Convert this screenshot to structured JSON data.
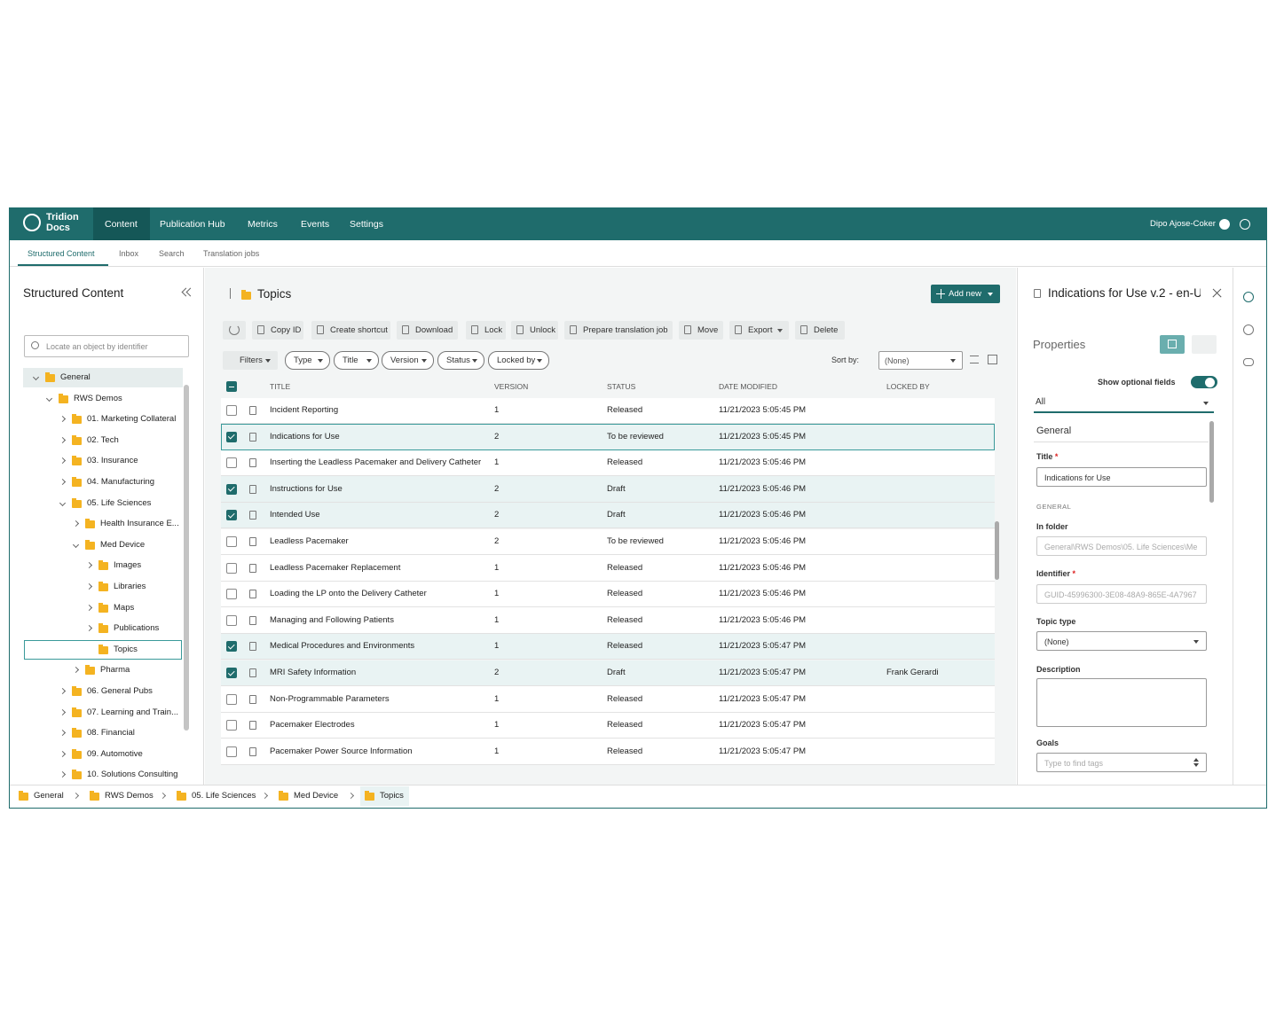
{
  "nav": {
    "brand": "Tridion Docs",
    "tabs": [
      {
        "label": "Content",
        "active": true
      },
      {
        "label": "Publication Hub"
      },
      {
        "label": "Metrics"
      },
      {
        "label": "Events"
      },
      {
        "label": "Settings"
      }
    ],
    "user": "Dipo Ajose-Coker"
  },
  "subnav": [
    {
      "label": "Structured Content",
      "active": true
    },
    {
      "label": "Inbox"
    },
    {
      "label": "Search"
    },
    {
      "label": "Translation jobs"
    }
  ],
  "sidebar": {
    "title": "Structured Content",
    "search_placeholder": "Locate an object by identifier",
    "tree": [
      {
        "label": "General",
        "level": 0,
        "expanded": true,
        "active": true
      },
      {
        "label": "RWS Demos",
        "level": 1,
        "expanded": true
      },
      {
        "label": "01. Marketing Collateral",
        "level": 2
      },
      {
        "label": "02. Tech",
        "level": 2
      },
      {
        "label": "03. Insurance",
        "level": 2
      },
      {
        "label": "04. Manufacturing",
        "level": 2
      },
      {
        "label": "05. Life Sciences",
        "level": 2,
        "expanded": true
      },
      {
        "label": "Health Insurance E...",
        "level": 3
      },
      {
        "label": "Med Device",
        "level": 3,
        "expanded": true
      },
      {
        "label": "Images",
        "level": 4
      },
      {
        "label": "Libraries",
        "level": 4
      },
      {
        "label": "Maps",
        "level": 4
      },
      {
        "label": "Publications",
        "level": 4
      },
      {
        "label": "Topics",
        "level": 4,
        "leaf": true,
        "selected": true
      },
      {
        "label": "Pharma",
        "level": 3
      },
      {
        "label": "06. General Pubs",
        "level": 2
      },
      {
        "label": "07. Learning and Train...",
        "level": 2
      },
      {
        "label": "08. Financial",
        "level": 2
      },
      {
        "label": "09. Automotive",
        "level": 2
      },
      {
        "label": "10. Solutions Consulting",
        "level": 2
      }
    ]
  },
  "main": {
    "title": "Topics",
    "add_new": "Add new",
    "toolbar": [
      {
        "label": "Copy ID"
      },
      {
        "label": "Create shortcut"
      },
      {
        "label": "Download"
      },
      {
        "label": "Lock"
      },
      {
        "label": "Unlock"
      },
      {
        "label": "Prepare translation job"
      },
      {
        "label": "Move"
      },
      {
        "label": "Export",
        "menu": true
      },
      {
        "label": "Delete"
      }
    ],
    "filters": [
      "Filters",
      "Type",
      "Title",
      "Version",
      "Status",
      "Locked by"
    ],
    "sort_label": "Sort by:",
    "sort_value": "(None)",
    "columns": [
      "TITLE",
      "VERSION",
      "STATUS",
      "DATE MODIFIED",
      "LOCKED BY"
    ],
    "rows": [
      {
        "title": "Incident Reporting",
        "version": 1,
        "status": "Released",
        "modified": "11/21/2023 5:05:45 PM"
      },
      {
        "title": "Indications for Use",
        "version": 2,
        "status": "To be reviewed",
        "modified": "11/21/2023 5:05:45 PM",
        "checked": true,
        "focused": true
      },
      {
        "title": "Inserting the Leadless Pacemaker and Delivery Catheter",
        "version": 1,
        "status": "Released",
        "modified": "11/21/2023 5:05:46 PM"
      },
      {
        "title": "Instructions for Use",
        "version": 2,
        "status": "Draft",
        "modified": "11/21/2023 5:05:46 PM",
        "checked": true
      },
      {
        "title": "Intended Use",
        "version": 2,
        "status": "Draft",
        "modified": "11/21/2023 5:05:46 PM",
        "checked": true
      },
      {
        "title": "Leadless Pacemaker",
        "version": 2,
        "status": "To be reviewed",
        "modified": "11/21/2023 5:05:46 PM"
      },
      {
        "title": "Leadless Pacemaker Replacement",
        "version": 1,
        "status": "Released",
        "modified": "11/21/2023 5:05:46 PM"
      },
      {
        "title": "Loading the LP onto the Delivery Catheter",
        "version": 1,
        "status": "Released",
        "modified": "11/21/2023 5:05:46 PM"
      },
      {
        "title": "Managing and Following Patients",
        "version": 1,
        "status": "Released",
        "modified": "11/21/2023 5:05:46 PM"
      },
      {
        "title": "Medical Procedures and Environments",
        "version": 1,
        "status": "Released",
        "modified": "11/21/2023 5:05:47 PM",
        "checked": true
      },
      {
        "title": "MRI Safety Information",
        "version": 2,
        "status": "Draft",
        "modified": "11/21/2023 5:05:47 PM",
        "locked_by": "Frank Gerardi",
        "checked": true
      },
      {
        "title": "Non-Programmable Parameters",
        "version": 1,
        "status": "Released",
        "modified": "11/21/2023 5:05:47 PM"
      },
      {
        "title": "Pacemaker Electrodes",
        "version": 1,
        "status": "Released",
        "modified": "11/21/2023 5:05:47 PM"
      },
      {
        "title": "Pacemaker Power Source Information",
        "version": 1,
        "status": "Released",
        "modified": "11/21/2023 5:05:47 PM"
      }
    ]
  },
  "details": {
    "title": "Indications for Use v.2 - en-U",
    "properties": "Properties",
    "optional_toggle": "Show optional fields",
    "filter": "All",
    "section": "General",
    "group": "GENERAL",
    "required_mark": "*",
    "fields": [
      {
        "label": "Title",
        "required": true,
        "kind": "input",
        "value": "Indications for Use"
      },
      {
        "label": "In folder",
        "kind": "disabled",
        "value": "General\\RWS Demos\\05. Life Sciences\\Me"
      },
      {
        "label": "Identifier",
        "required": true,
        "kind": "disabled",
        "value": "GUID-45996300-3E08-48A9-865E-4A7967"
      },
      {
        "label": "Topic type",
        "kind": "select",
        "value": "(None)"
      },
      {
        "label": "Description",
        "kind": "textarea"
      },
      {
        "label": "Goals",
        "kind": "tags",
        "placeholder": "Type to find tags"
      }
    ]
  },
  "breadcrumb": [
    "General",
    "RWS Demos",
    "05. Life Sciences",
    "Med Device",
    "Topics"
  ]
}
